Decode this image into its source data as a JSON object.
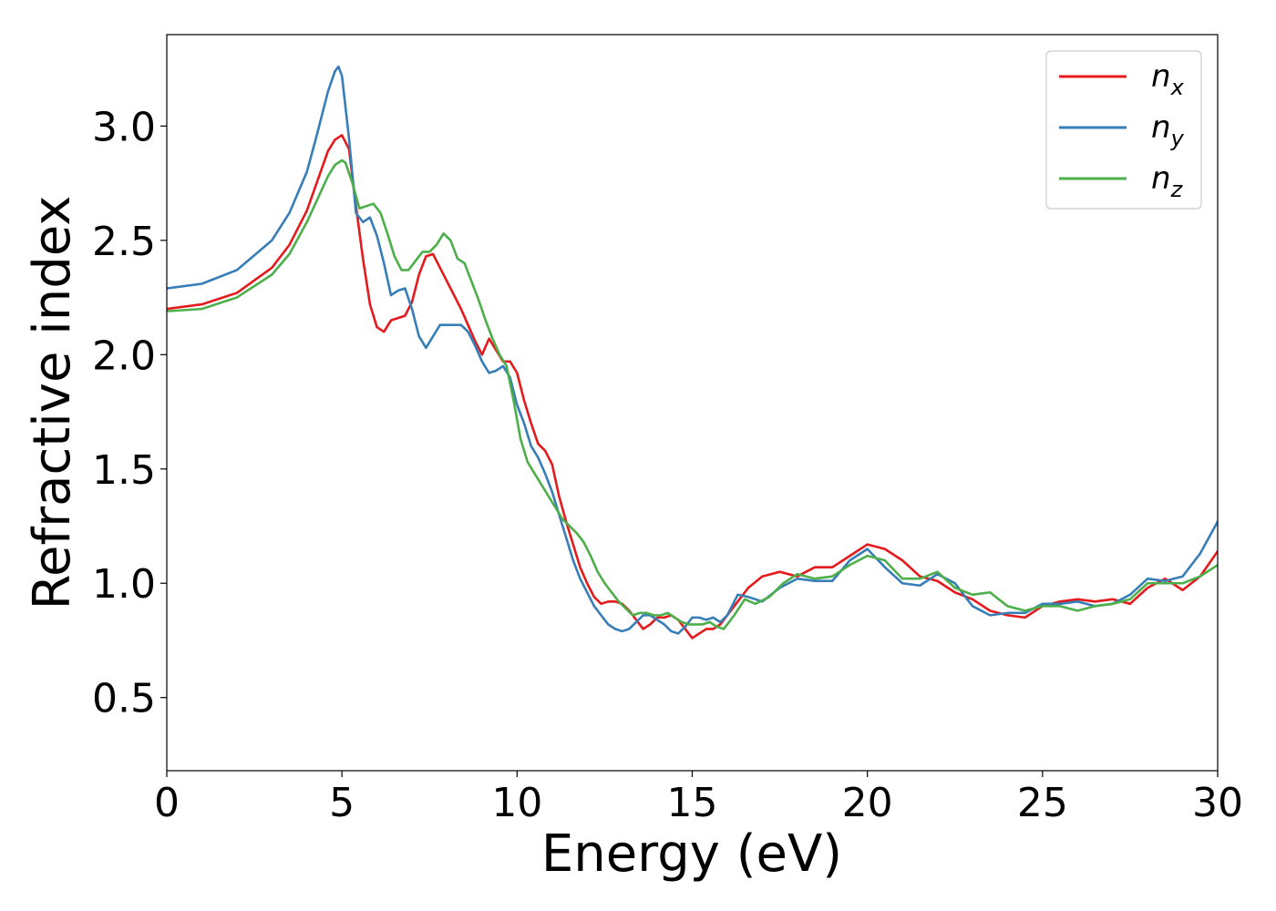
{
  "chart_data": {
    "type": "line",
    "title": "",
    "xlabel": "Energy (eV)",
    "ylabel": "Refractive index",
    "xlim": [
      0,
      30
    ],
    "ylim": [
      0.18,
      3.4
    ],
    "xticks": [
      0,
      5,
      10,
      15,
      20,
      25,
      30
    ],
    "yticks": [
      0.5,
      1.0,
      1.5,
      2.0,
      2.5,
      3.0
    ],
    "xtick_labels": [
      "0",
      "5",
      "10",
      "15",
      "20",
      "25",
      "30"
    ],
    "ytick_labels": [
      "0.5",
      "1.0",
      "1.5",
      "2.0",
      "2.5",
      "3.0"
    ],
    "grid": false,
    "legend_position": "top-right",
    "series": [
      {
        "name": "n",
        "subscript": "x",
        "color": "#e41a1c",
        "x": [
          0,
          1,
          2,
          3,
          3.5,
          4,
          4.3,
          4.6,
          4.8,
          5.0,
          5.2,
          5.4,
          5.6,
          5.8,
          6.0,
          6.2,
          6.4,
          6.6,
          6.8,
          7.0,
          7.2,
          7.4,
          7.6,
          7.8,
          8.0,
          8.2,
          8.4,
          8.6,
          8.8,
          9.0,
          9.2,
          9.4,
          9.6,
          9.8,
          10.0,
          10.2,
          10.4,
          10.6,
          10.8,
          11.0,
          11.2,
          11.4,
          11.6,
          11.8,
          12.0,
          12.2,
          12.4,
          12.6,
          12.8,
          13.0,
          13.2,
          13.4,
          13.6,
          13.8,
          14.0,
          14.2,
          14.4,
          14.6,
          14.8,
          15.0,
          15.2,
          15.4,
          15.6,
          15.8,
          16.0,
          16.3,
          16.6,
          17.0,
          17.5,
          18.0,
          18.5,
          19.0,
          19.5,
          20.0,
          20.5,
          21.0,
          21.5,
          22.0,
          22.5,
          23.0,
          23.5,
          24.0,
          24.5,
          25.0,
          25.5,
          26.0,
          26.5,
          27.0,
          27.5,
          28.0,
          28.5,
          29.0,
          29.5,
          30.0
        ],
        "y": [
          2.2,
          2.22,
          2.27,
          2.38,
          2.48,
          2.63,
          2.76,
          2.89,
          2.94,
          2.96,
          2.9,
          2.65,
          2.42,
          2.22,
          2.12,
          2.1,
          2.15,
          2.16,
          2.17,
          2.23,
          2.35,
          2.43,
          2.44,
          2.38,
          2.32,
          2.26,
          2.2,
          2.13,
          2.06,
          2.0,
          2.07,
          2.02,
          1.97,
          1.97,
          1.92,
          1.8,
          1.7,
          1.61,
          1.58,
          1.52,
          1.38,
          1.27,
          1.17,
          1.07,
          1.0,
          0.94,
          0.91,
          0.92,
          0.92,
          0.91,
          0.88,
          0.84,
          0.8,
          0.82,
          0.85,
          0.85,
          0.86,
          0.84,
          0.8,
          0.76,
          0.78,
          0.8,
          0.8,
          0.82,
          0.86,
          0.92,
          0.98,
          1.03,
          1.05,
          1.03,
          1.07,
          1.07,
          1.12,
          1.17,
          1.15,
          1.1,
          1.03,
          1.01,
          0.96,
          0.93,
          0.88,
          0.86,
          0.85,
          0.9,
          0.92,
          0.93,
          0.92,
          0.93,
          0.91,
          0.98,
          1.02,
          0.97,
          1.03,
          1.14
        ]
      },
      {
        "name": "n",
        "subscript": "y",
        "color": "#377eb8",
        "x": [
          0,
          1,
          2,
          3,
          3.5,
          4,
          4.3,
          4.6,
          4.8,
          4.9,
          5.0,
          5.2,
          5.4,
          5.6,
          5.8,
          6.0,
          6.2,
          6.4,
          6.6,
          6.8,
          7.0,
          7.2,
          7.4,
          7.6,
          7.8,
          8.0,
          8.2,
          8.4,
          8.6,
          8.8,
          9.0,
          9.2,
          9.4,
          9.6,
          9.8,
          10.0,
          10.2,
          10.4,
          10.6,
          10.8,
          11.0,
          11.2,
          11.4,
          11.6,
          11.8,
          12.0,
          12.2,
          12.4,
          12.6,
          12.8,
          13.0,
          13.2,
          13.4,
          13.6,
          13.8,
          14.0,
          14.2,
          14.4,
          14.6,
          14.8,
          15.0,
          15.2,
          15.4,
          15.6,
          15.8,
          16.0,
          16.3,
          16.6,
          17.0,
          17.5,
          18.0,
          18.5,
          19.0,
          19.5,
          20.0,
          20.5,
          21.0,
          21.5,
          22.0,
          22.5,
          23.0,
          23.5,
          24.0,
          24.5,
          25.0,
          25.5,
          26.0,
          26.5,
          27.0,
          27.5,
          28.0,
          28.5,
          29.0,
          29.5,
          30.0
        ],
        "y": [
          2.29,
          2.31,
          2.37,
          2.5,
          2.62,
          2.8,
          2.97,
          3.15,
          3.24,
          3.26,
          3.22,
          2.95,
          2.62,
          2.58,
          2.6,
          2.52,
          2.4,
          2.26,
          2.28,
          2.29,
          2.2,
          2.08,
          2.03,
          2.08,
          2.13,
          2.13,
          2.13,
          2.13,
          2.1,
          2.04,
          1.97,
          1.92,
          1.93,
          1.95,
          1.9,
          1.78,
          1.7,
          1.6,
          1.55,
          1.48,
          1.4,
          1.3,
          1.2,
          1.1,
          1.02,
          0.96,
          0.9,
          0.86,
          0.82,
          0.8,
          0.79,
          0.8,
          0.83,
          0.86,
          0.86,
          0.84,
          0.82,
          0.79,
          0.78,
          0.81,
          0.85,
          0.85,
          0.84,
          0.85,
          0.83,
          0.86,
          0.95,
          0.94,
          0.92,
          0.98,
          1.02,
          1.01,
          1.01,
          1.1,
          1.15,
          1.07,
          1.0,
          0.99,
          1.04,
          1.0,
          0.9,
          0.86,
          0.87,
          0.87,
          0.91,
          0.91,
          0.92,
          0.9,
          0.91,
          0.95,
          1.02,
          1.01,
          1.03,
          1.13,
          1.27
        ]
      },
      {
        "name": "n",
        "subscript": "z",
        "color": "#4daf4a",
        "x": [
          0,
          1,
          2,
          3,
          3.5,
          4,
          4.3,
          4.6,
          4.8,
          5.0,
          5.1,
          5.3,
          5.5,
          5.7,
          5.9,
          6.1,
          6.3,
          6.5,
          6.7,
          6.9,
          7.1,
          7.3,
          7.5,
          7.7,
          7.9,
          8.1,
          8.3,
          8.5,
          8.7,
          8.9,
          9.1,
          9.3,
          9.5,
          9.7,
          9.9,
          10.1,
          10.3,
          10.5,
          10.7,
          10.9,
          11.1,
          11.3,
          11.5,
          11.7,
          11.9,
          12.1,
          12.3,
          12.5,
          12.7,
          12.9,
          13.1,
          13.3,
          13.5,
          13.7,
          13.9,
          14.1,
          14.3,
          14.5,
          14.7,
          14.9,
          15.1,
          15.3,
          15.5,
          15.7,
          15.9,
          16.2,
          16.5,
          16.8,
          17.2,
          17.6,
          18.0,
          18.5,
          19.0,
          19.5,
          20.0,
          20.5,
          21.0,
          21.5,
          22.0,
          22.5,
          23.0,
          23.5,
          24.0,
          24.5,
          25.0,
          25.5,
          26.0,
          26.5,
          27.0,
          27.5,
          28.0,
          28.5,
          29.0,
          29.5,
          30.0
        ],
        "y": [
          2.19,
          2.2,
          2.25,
          2.35,
          2.44,
          2.58,
          2.68,
          2.78,
          2.83,
          2.85,
          2.84,
          2.75,
          2.64,
          2.65,
          2.66,
          2.62,
          2.53,
          2.43,
          2.37,
          2.37,
          2.41,
          2.45,
          2.45,
          2.48,
          2.53,
          2.5,
          2.42,
          2.4,
          2.32,
          2.24,
          2.15,
          2.07,
          2.0,
          1.95,
          1.8,
          1.63,
          1.53,
          1.48,
          1.43,
          1.38,
          1.33,
          1.28,
          1.25,
          1.22,
          1.18,
          1.12,
          1.05,
          1.0,
          0.96,
          0.92,
          0.89,
          0.86,
          0.87,
          0.87,
          0.86,
          0.86,
          0.87,
          0.85,
          0.83,
          0.82,
          0.82,
          0.82,
          0.83,
          0.81,
          0.8,
          0.86,
          0.93,
          0.91,
          0.94,
          1.0,
          1.04,
          1.02,
          1.03,
          1.08,
          1.12,
          1.1,
          1.02,
          1.02,
          1.05,
          0.98,
          0.95,
          0.96,
          0.9,
          0.88,
          0.9,
          0.9,
          0.88,
          0.9,
          0.91,
          0.93,
          1.0,
          1.0,
          1.0,
          1.03,
          1.08
        ]
      }
    ]
  }
}
